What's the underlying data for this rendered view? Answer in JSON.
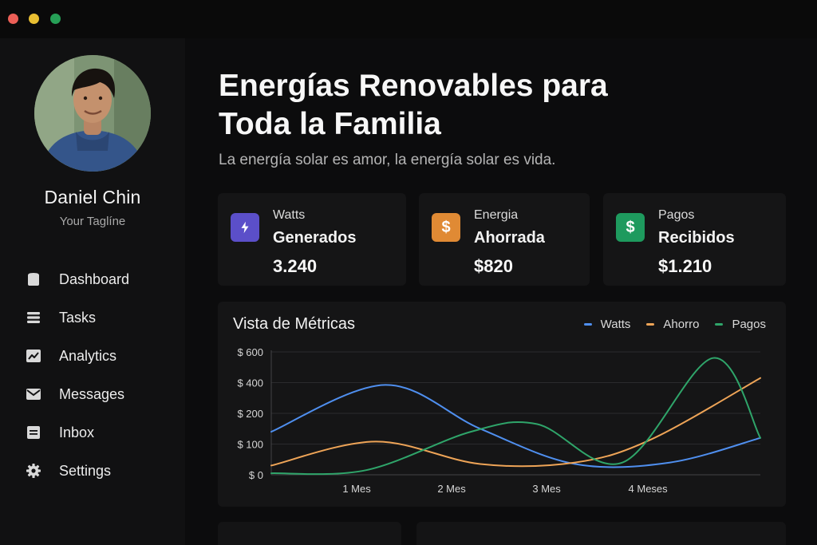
{
  "window": {
    "controls": [
      "close",
      "minimize",
      "maximize"
    ]
  },
  "profile": {
    "name": "Daniel Chin",
    "tagline": "Your Taglíne"
  },
  "nav": [
    {
      "label": "Dashboard",
      "icon": "dashboard-icon"
    },
    {
      "label": "Tasks",
      "icon": "tasks-icon"
    },
    {
      "label": "Analytics",
      "icon": "analytics-icon"
    },
    {
      "label": "Messages",
      "icon": "mail-icon"
    },
    {
      "label": "Inbox",
      "icon": "inbox-icon"
    },
    {
      "label": "Settings",
      "icon": "gear-icon"
    }
  ],
  "header": {
    "title_line1": "Energías Renovables para",
    "title_line2": "Toda la Familia",
    "subtitle": "La energía solar es amor, la energía solar es vida."
  },
  "cards": [
    {
      "label1": "Watts",
      "label2": "Generados",
      "value": "3.240",
      "icon": "bolt-icon",
      "color": "#5b4fc9"
    },
    {
      "label1": "Energia",
      "label2": "Ahorrada",
      "value": "$820",
      "icon": "dollar-icon",
      "color": "#e08a34",
      "icon_glyph": "$"
    },
    {
      "label1": "Pagos",
      "label2": "Recibidos",
      "value": "$1.210",
      "icon": "dollar-icon",
      "color": "#1e9a5e",
      "icon_glyph": "$"
    }
  ],
  "chart": {
    "title": "Vista de Métricas",
    "legend": [
      {
        "name": "Watts",
        "color": "#4f8fef"
      },
      {
        "name": "Ahorro",
        "color": "#eea457"
      },
      {
        "name": "Pagos",
        "color": "#2fa56a"
      }
    ]
  },
  "chart_data": {
    "type": "line",
    "title": "Vista de Métricas",
    "x": [
      0,
      1,
      2,
      3,
      4,
      5
    ],
    "x_tick_labels": [
      "1 Mes",
      "2 Mes",
      "3 Mes",
      "4 Meses"
    ],
    "x_tick_positions": [
      1,
      2,
      3,
      4
    ],
    "y_tick_labels": [
      "$ 600",
      "$ 400",
      "$ 200",
      "$ 100",
      "$ 0"
    ],
    "y_tick_values": [
      600,
      400,
      200,
      100,
      0
    ],
    "ylim": [
      0,
      600
    ],
    "grid": true,
    "legend_position": "top-right",
    "series": [
      {
        "name": "Watts",
        "color": "#4f8fef",
        "points": [
          [
            0,
            140
          ],
          [
            1.2,
            385
          ],
          [
            2.2,
            150
          ],
          [
            3.2,
            35
          ],
          [
            4.2,
            40
          ],
          [
            5.15,
            120
          ]
        ]
      },
      {
        "name": "Ahorro",
        "color": "#eea457",
        "points": [
          [
            0,
            30
          ],
          [
            1.1,
            108
          ],
          [
            2.2,
            35
          ],
          [
            3.2,
            40
          ],
          [
            4.0,
            115
          ],
          [
            5.15,
            430
          ]
        ]
      },
      {
        "name": "Pagos",
        "color": "#2fa56a",
        "points": [
          [
            0,
            5
          ],
          [
            1.0,
            15
          ],
          [
            2.1,
            140
          ],
          [
            2.8,
            165
          ],
          [
            3.7,
            40
          ],
          [
            4.65,
            560
          ],
          [
            5.15,
            120
          ]
        ]
      }
    ]
  }
}
